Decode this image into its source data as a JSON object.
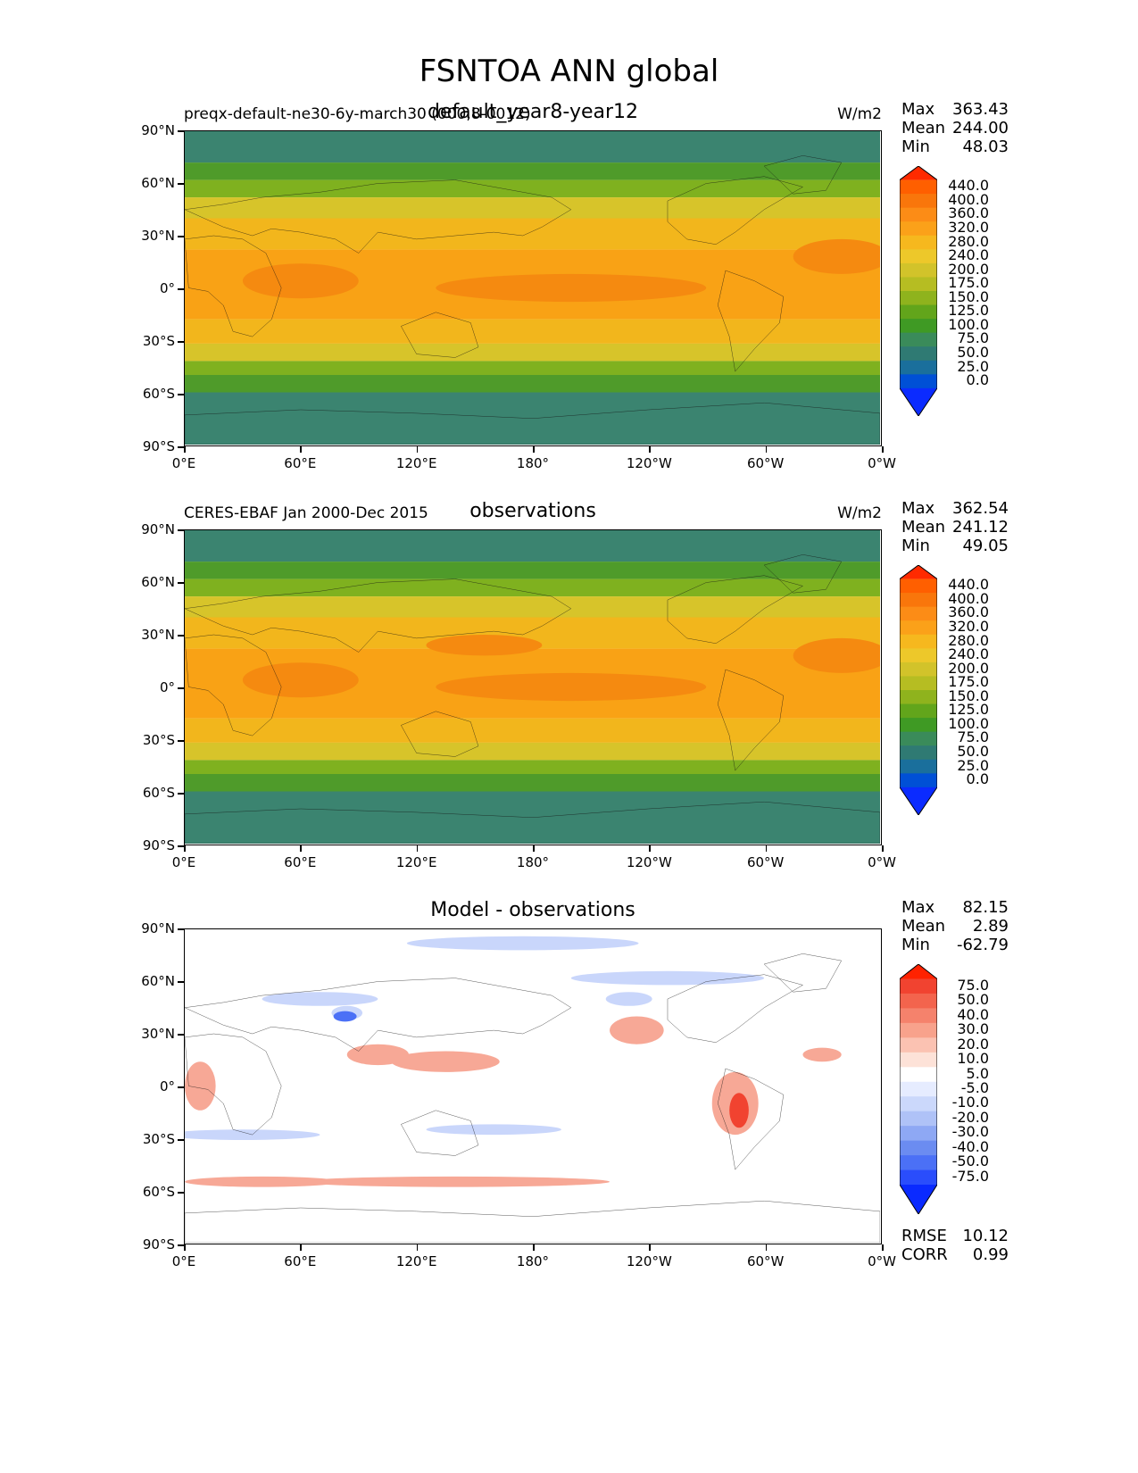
{
  "figure": {
    "title": "FSNTOA ANN global"
  },
  "axes": {
    "lat_ticks": [
      "90°N",
      "60°N",
      "30°N",
      "0°",
      "30°S",
      "60°S",
      "90°S"
    ],
    "lon_ticks": [
      "0°E",
      "60°E",
      "120°E",
      "180°",
      "120°W",
      "60°W",
      "0°W"
    ]
  },
  "panels": [
    {
      "left_label": "preqx-default-ne30-6y-march30 (000,8-0012)",
      "center_title": "default_year8-year12",
      "units": "W/m2",
      "stats": [
        {
          "label": "Max",
          "value": "363.43"
        },
        {
          "label": "Mean",
          "value": "244.00"
        },
        {
          "label": "Min",
          "value": "48.03"
        }
      ],
      "colorbar": {
        "labels": [
          "440.0",
          "400.0",
          "360.0",
          "320.0",
          "280.0",
          "240.0",
          "200.0",
          "175.0",
          "150.0",
          "125.0",
          "100.0",
          "75.0",
          "50.0",
          "25.0",
          "0.0"
        ],
        "colors": [
          "#ff2a00",
          "#ff5f00",
          "#f9760b",
          "#fc8c16",
          "#fba119",
          "#f6b81e",
          "#edc82a",
          "#d2c32a",
          "#b6bd22",
          "#8fb31d",
          "#62a51b",
          "#3f9a24",
          "#3a8b5a",
          "#2f7a73",
          "#1a6f9c",
          "#0050d6",
          "#0b2bff"
        ]
      }
    },
    {
      "left_label": "CERES-EBAF Jan 2000-Dec 2015",
      "center_title": "observations",
      "units": "W/m2",
      "stats": [
        {
          "label": "Max",
          "value": "362.54"
        },
        {
          "label": "Mean",
          "value": "241.12"
        },
        {
          "label": "Min",
          "value": "49.05"
        }
      ],
      "colorbar": {
        "labels": [
          "440.0",
          "400.0",
          "360.0",
          "320.0",
          "280.0",
          "240.0",
          "200.0",
          "175.0",
          "150.0",
          "125.0",
          "100.0",
          "75.0",
          "50.0",
          "25.0",
          "0.0"
        ],
        "colors": [
          "#ff2a00",
          "#ff5f00",
          "#f9760b",
          "#fc8c16",
          "#fba119",
          "#f6b81e",
          "#edc82a",
          "#d2c32a",
          "#b6bd22",
          "#8fb31d",
          "#62a51b",
          "#3f9a24",
          "#3a8b5a",
          "#2f7a73",
          "#1a6f9c",
          "#0050d6",
          "#0b2bff"
        ]
      }
    },
    {
      "left_label": "",
      "center_title": "Model - observations",
      "units": "",
      "stats": [
        {
          "label": "Max",
          "value": "82.15"
        },
        {
          "label": "Mean",
          "value": "2.89"
        },
        {
          "label": "Min",
          "value": "-62.79"
        }
      ],
      "colorbar": {
        "labels": [
          "75.0",
          "50.0",
          "40.0",
          "30.0",
          "20.0",
          "10.0",
          "5.0",
          "-5.0",
          "-10.0",
          "-20.0",
          "-30.0",
          "-40.0",
          "-50.0",
          "-75.0"
        ],
        "colors": [
          "#ff2200",
          "#f14330",
          "#f3644d",
          "#f5826c",
          "#f8a28c",
          "#fbc2b2",
          "#fde2d8",
          "#ffffff",
          "#e6ecff",
          "#cbd8fb",
          "#afc2f7",
          "#8ea8f4",
          "#6b8cf1",
          "#4b70f6",
          "#2a4dfc",
          "#0a2aff"
        ]
      },
      "extra_stats": [
        {
          "label": "RMSE",
          "value": "10.12"
        },
        {
          "label": "CORR",
          "value": "0.99"
        }
      ]
    }
  ],
  "map_field_colors": {
    "polar": "#3b8470",
    "subpolar": "#4f9b2a",
    "midlat_green": "#7fb11f",
    "midlat_yellow": "#d7c42a",
    "subtropic": "#f2b61c",
    "tropic": "#f9a215",
    "tropic_max": "#f58a10",
    "diff_pos": "#f7a896",
    "diff_neg": "#c9d6fb"
  }
}
